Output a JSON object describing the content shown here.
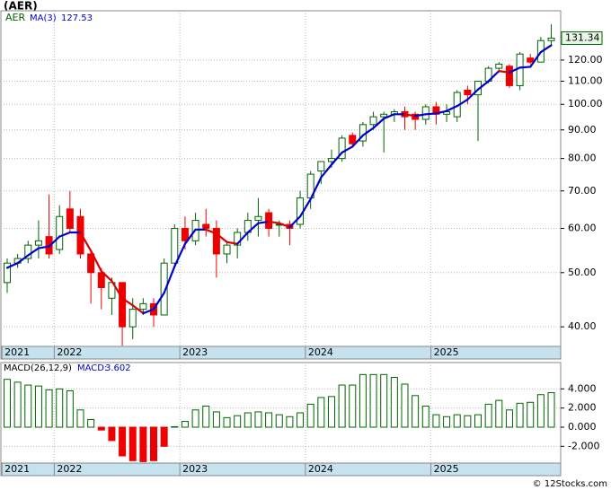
{
  "title": "(AER)",
  "footer": "© 12Stocks.com",
  "chart_data": [
    {
      "type": "candlestick",
      "symbol": "AER",
      "log": true,
      "grid": true,
      "up_color": "#006400",
      "down_color": "#ee0000",
      "x": [
        0,
        1,
        2,
        3,
        4,
        5,
        6,
        7,
        8,
        9,
        10,
        11,
        12,
        13,
        14,
        15,
        16,
        17,
        18,
        19,
        20,
        21,
        22,
        23,
        24,
        25,
        26,
        27,
        28,
        29,
        30,
        31,
        32,
        33,
        34,
        35,
        36,
        37,
        38,
        39,
        40,
        41,
        42,
        43,
        44,
        45,
        46,
        47,
        48,
        49,
        50,
        51,
        52
      ],
      "open": [
        48,
        52,
        53,
        56,
        58,
        55,
        65,
        63,
        54,
        50,
        45,
        48,
        40,
        43,
        44,
        42,
        52,
        60,
        57,
        61,
        60,
        54,
        56,
        59,
        62,
        64,
        61,
        61,
        61,
        68,
        76,
        79,
        80,
        88,
        86,
        92,
        95,
        96,
        97,
        96,
        94,
        99,
        96,
        95,
        106,
        104,
        110,
        116,
        117,
        108,
        121,
        119,
        130
      ],
      "high": [
        53,
        54,
        57,
        62,
        69,
        66,
        70,
        65,
        55,
        51,
        49,
        48,
        45,
        45,
        45,
        53,
        61,
        63,
        64,
        65,
        62,
        57,
        60,
        64,
        68,
        65,
        62,
        62,
        70,
        76,
        79,
        83,
        88,
        89,
        93,
        97,
        97,
        98,
        99,
        97,
        100,
        101,
        100,
        106,
        108,
        110,
        117,
        119,
        118,
        124,
        123,
        132,
        139
      ],
      "low": [
        46,
        51,
        52,
        53,
        53,
        54,
        59,
        53,
        44,
        43,
        42,
        37,
        38,
        42,
        40,
        42,
        51,
        55,
        56,
        58,
        49,
        52,
        53,
        57,
        58,
        58,
        58,
        56,
        60,
        65,
        72,
        77,
        79,
        84,
        84,
        90,
        82,
        93,
        90,
        90,
        92,
        92,
        93,
        93,
        100,
        86,
        109,
        114,
        107,
        106,
        118,
        119,
        128
      ],
      "close": [
        52,
        53,
        56,
        57,
        54,
        63,
        60,
        54,
        50,
        47,
        48,
        40,
        43,
        44,
        42,
        52,
        60,
        57,
        62,
        60,
        54,
        56,
        59,
        62,
        63,
        60,
        61,
        60,
        68,
        75,
        79,
        80,
        87,
        85,
        92,
        95,
        96,
        97,
        95,
        94,
        99,
        96,
        97,
        105,
        104,
        110,
        116,
        118,
        108,
        123,
        119,
        130,
        131.34
      ],
      "ma": {
        "name": "MA(3)",
        "color": "#0000cc",
        "down_color": "#dd0000",
        "values": [
          51,
          52,
          53.7,
          55.3,
          55.7,
          58,
          59,
          59,
          54.7,
          50.3,
          48.3,
          45,
          43.7,
          42.3,
          43,
          46,
          51.3,
          56.3,
          59.7,
          59.7,
          58.7,
          56.7,
          56.3,
          59,
          61.3,
          61.7,
          61.3,
          60.3,
          63,
          67.7,
          74,
          78,
          82,
          84,
          88,
          90.7,
          94.3,
          96,
          96,
          95.3,
          96,
          96.3,
          97.3,
          99.3,
          102,
          106.3,
          110,
          114.7,
          114,
          116.3,
          116.7,
          124,
          127.53
        ]
      },
      "xlim": [
        -0.6,
        52.9
      ],
      "xticks": [
        {
          "value": -0.5,
          "label": "2021"
        },
        {
          "value": 4.5,
          "label": "2022"
        },
        {
          "value": 16.5,
          "label": "2023"
        },
        {
          "value": 28.5,
          "label": "2024"
        },
        {
          "value": 40.5,
          "label": "2025"
        }
      ],
      "ylim": [
        36.9,
        147
      ],
      "yticks": [
        {
          "value": 40,
          "label": "40.00"
        },
        {
          "value": 50,
          "label": "50.00"
        },
        {
          "value": 60,
          "label": "60.00"
        },
        {
          "value": 70,
          "label": "70.00"
        },
        {
          "value": 80,
          "label": "80.00"
        },
        {
          "value": 90,
          "label": "90.00"
        },
        {
          "value": 100,
          "label": "100.00"
        },
        {
          "value": 110,
          "label": "110.00"
        },
        {
          "value": 120,
          "label": "120.00"
        }
      ]
    },
    {
      "type": "bar",
      "title": "MACD(26,12,9)",
      "name": "MACD:",
      "grid": true,
      "color": "#006400",
      "negative_color": "#ee0000",
      "x": [
        0,
        1,
        2,
        3,
        4,
        5,
        6,
        7,
        8,
        9,
        10,
        11,
        12,
        13,
        14,
        15,
        16,
        17,
        18,
        19,
        20,
        21,
        22,
        23,
        24,
        25,
        26,
        27,
        28,
        29,
        30,
        31,
        32,
        33,
        34,
        35,
        36,
        37,
        38,
        39,
        40,
        41,
        42,
        43,
        44,
        45,
        46,
        47,
        48,
        49,
        50,
        51,
        52
      ],
      "values": [
        5.0,
        4.7,
        4.4,
        4.3,
        3.9,
        4.0,
        3.8,
        1.8,
        0.8,
        -0.3,
        -1.4,
        -3.0,
        -3.5,
        -3.6,
        -3.5,
        -2.0,
        0.05,
        0.6,
        1.8,
        2.2,
        1.6,
        1.0,
        1.2,
        1.5,
        1.6,
        1.5,
        1.3,
        1.1,
        1.5,
        2.4,
        3.1,
        3.2,
        4.4,
        4.4,
        5.5,
        5.5,
        5.5,
        5.2,
        4.5,
        3.3,
        2.2,
        1.3,
        1.1,
        1.3,
        1.2,
        1.3,
        2.4,
        2.8,
        1.8,
        2.5,
        2.6,
        3.4,
        3.602
      ],
      "xlim": [
        -0.6,
        52.9
      ],
      "xticks": [
        {
          "value": -0.5,
          "label": "2021"
        },
        {
          "value": 4.5,
          "label": "2022"
        },
        {
          "value": 16.5,
          "label": "2023"
        },
        {
          "value": 28.5,
          "label": "2024"
        },
        {
          "value": 40.5,
          "label": "2025"
        }
      ],
      "ylim": [
        -3.75,
        6.75
      ],
      "yticks": [
        {
          "value": -2,
          "label": "-2.000"
        },
        {
          "value": 0,
          "label": "0.000"
        },
        {
          "value": 2,
          "label": "2.000"
        },
        {
          "value": 4,
          "label": "4.000"
        }
      ]
    }
  ]
}
